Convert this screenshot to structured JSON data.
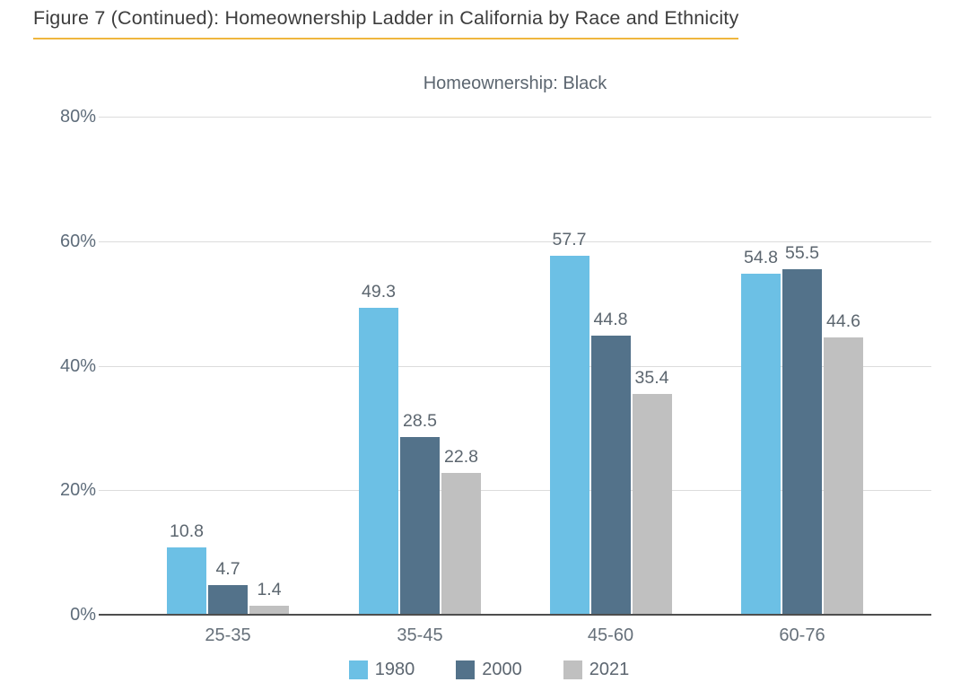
{
  "figure": {
    "title": "Figure 7 (Continued): Homeownership Ladder in California by Race and Ethnicity",
    "subtitle": "Homeownership: Black"
  },
  "chart_data": {
    "type": "bar",
    "title": "Homeownership: Black",
    "xlabel": "",
    "ylabel": "",
    "categories": [
      "25-35",
      "35-45",
      "45-60",
      "60-76"
    ],
    "series": [
      {
        "name": "1980",
        "color": "#6cc0e5",
        "values": [
          10.8,
          49.3,
          57.7,
          54.8
        ]
      },
      {
        "name": "2000",
        "color": "#53728a",
        "values": [
          4.7,
          28.5,
          44.8,
          55.5
        ]
      },
      {
        "name": "2021",
        "color": "#c0c0c0",
        "values": [
          1.4,
          22.8,
          35.4,
          44.6
        ]
      }
    ],
    "y_ticks": [
      {
        "value": 80,
        "label": "80%"
      },
      {
        "value": 60,
        "label": "60%"
      },
      {
        "value": 40,
        "label": "40%"
      },
      {
        "value": 20,
        "label": "20%"
      },
      {
        "value": 0,
        "label": "0%"
      }
    ],
    "ylim": [
      0,
      80
    ],
    "grid": "horizontal",
    "legend_position": "bottom-center",
    "value_labels_shown": true
  },
  "colors": {
    "accent_underline": "#efb63e",
    "gridline": "#dcdcdc",
    "axis_line": "#4e4e4e",
    "title_text": "#3c3c3c",
    "subtitle_text": "#5c6670",
    "tick_text": "#5e6c7a",
    "value_label_text": "#5c666f"
  }
}
